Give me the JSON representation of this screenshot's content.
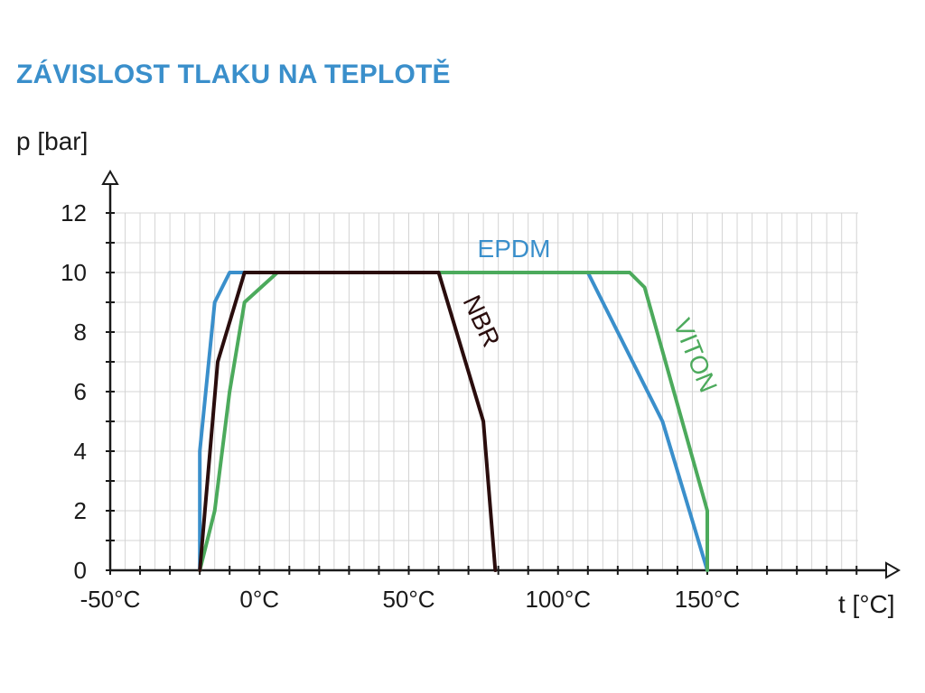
{
  "chart_data": {
    "type": "line",
    "title": "ZÁVISLOST TLAKU NA TEPLOTĚ",
    "xlabel": "t [°C]",
    "ylabel": "p [bar]",
    "xlim": [
      -50,
      150
    ],
    "ylim": [
      0,
      12
    ],
    "x_ticks": [
      -50,
      0,
      50,
      100,
      150
    ],
    "x_tick_labels": [
      "-50°C",
      "0°C",
      "50°C",
      "100°C",
      "150°C"
    ],
    "y_ticks": [
      0,
      2,
      4,
      6,
      8,
      10,
      12
    ],
    "y_tick_labels": [
      "0",
      "2",
      "4",
      "6",
      "8",
      "10",
      "12"
    ],
    "grid": true,
    "series": [
      {
        "name": "EPDM",
        "color": "#3a8fcb",
        "points": [
          [
            -20,
            0
          ],
          [
            -20,
            4
          ],
          [
            -15,
            9
          ],
          [
            -10,
            10
          ],
          [
            110,
            10
          ],
          [
            135,
            5
          ],
          [
            150,
            0
          ]
        ]
      },
      {
        "name": "VITON",
        "color": "#4caa5c",
        "points": [
          [
            -20,
            0
          ],
          [
            -15,
            2
          ],
          [
            -10,
            6
          ],
          [
            -5,
            9
          ],
          [
            6,
            10
          ],
          [
            124,
            10
          ],
          [
            129,
            9.5
          ],
          [
            150,
            2
          ],
          [
            150,
            0
          ]
        ]
      },
      {
        "name": "NBR",
        "color": "#2a0d0d",
        "points": [
          [
            -20,
            0
          ],
          [
            -14,
            7
          ],
          [
            -5,
            10
          ],
          [
            60,
            10
          ],
          [
            75,
            5
          ],
          [
            79,
            0
          ]
        ]
      }
    ]
  }
}
